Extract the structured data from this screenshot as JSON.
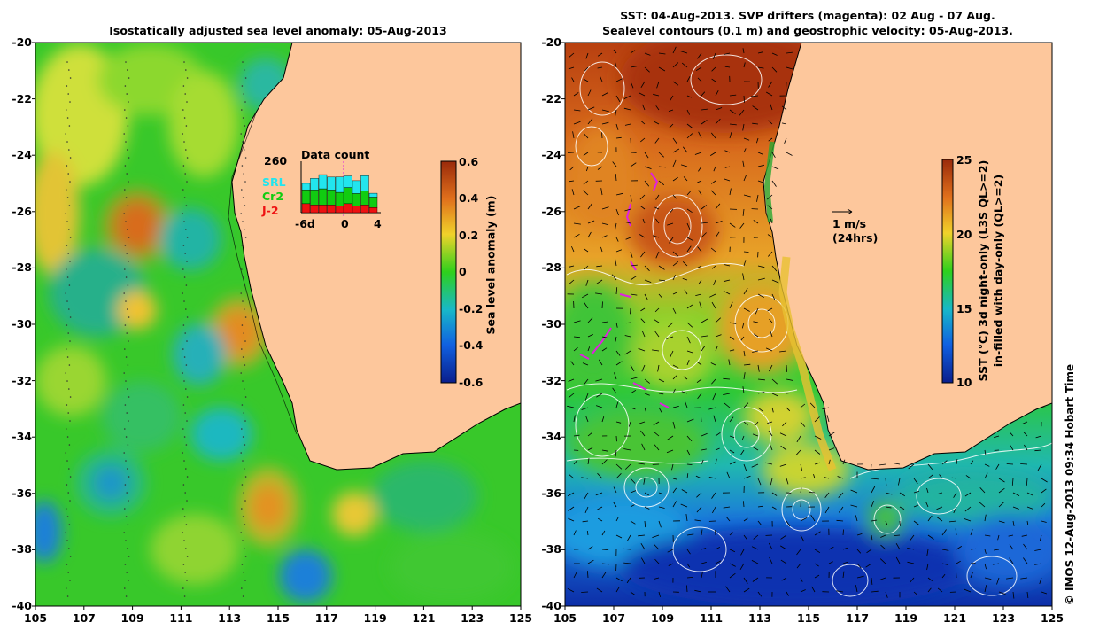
{
  "left_panel": {
    "title": "Isostatically adjusted sea level anomaly: 05-Aug-2013",
    "colorbar_label": "Sea level anomaly (m)",
    "colorbar_ticks": [
      "0.6",
      "0.4",
      "0.2",
      "0",
      "-0.2",
      "-0.4",
      "-0.6"
    ],
    "inset": {
      "title": "Data count",
      "max_label": "260",
      "legend": [
        {
          "label": "SRL",
          "color": "#22e5ee"
        },
        {
          "label": "Cr2",
          "color": "#11cc11"
        },
        {
          "label": "J-2",
          "color": "#ee1111"
        }
      ],
      "x_ticks": [
        "-6d",
        "0",
        "4"
      ]
    }
  },
  "right_panel": {
    "title_line1": "SST: 04-Aug-2013. SVP drifters (magenta): 02 Aug - 07 Aug.",
    "title_line2": "Sealevel contours (0.1 m) and geostrophic velocity: 05-Aug-2013.",
    "colorbar_label_line1": "SST (°C)  3d night-only (L3S QL>=2)",
    "colorbar_label_line2": "in-filled with day-only (QL>=2)",
    "colorbar_ticks": [
      "25",
      "20",
      "15",
      "10"
    ],
    "velocity_scale": {
      "label1": "1 m/s",
      "label2": "(24hrs)"
    }
  },
  "axes": {
    "y_ticks": [
      "-20",
      "-22",
      "-24",
      "-26",
      "-28",
      "-30",
      "-32",
      "-34",
      "-36",
      "-38",
      "-40"
    ],
    "x_ticks": [
      "105",
      "107",
      "109",
      "111",
      "113",
      "115",
      "117",
      "119",
      "121",
      "123",
      "125"
    ]
  },
  "credit": "© IMOS 12-Aug-2013 09:34 Hobart Time",
  "colors": {
    "land": "#fdc79c",
    "sla_high": "#b83a0e",
    "sla_mid": "#19c41e",
    "sla_low": "#0a2a9c",
    "sst_warm": "#c8501a",
    "sst_cool": "#0a2a9c",
    "drifter": "#e020e0"
  }
}
